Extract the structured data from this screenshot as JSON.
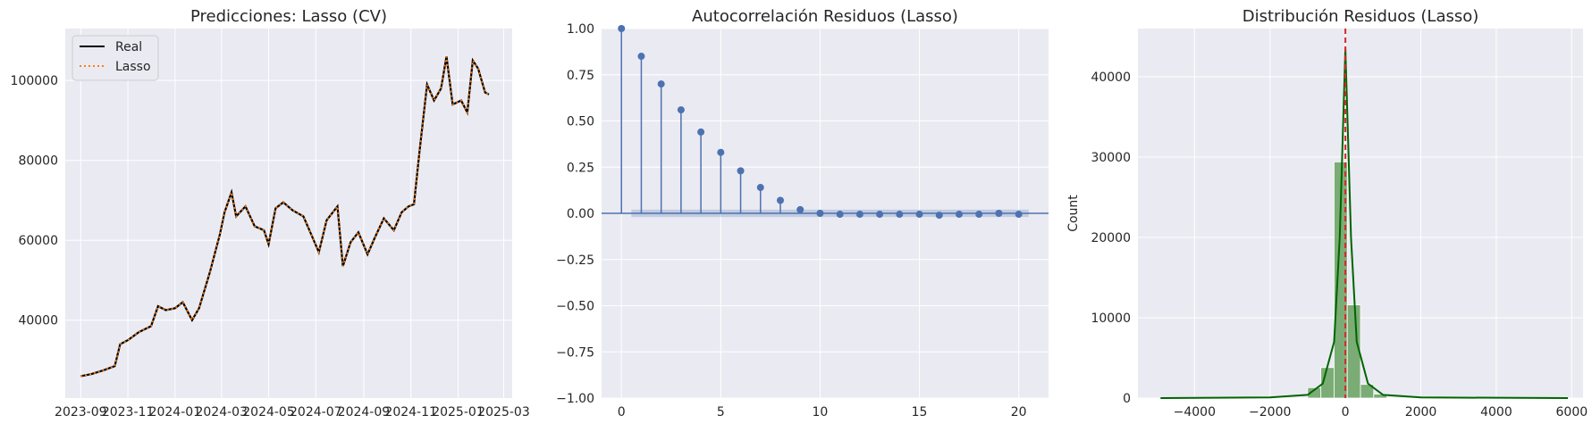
{
  "chart_data": [
    {
      "type": "line",
      "title": "Predicciones: Lasso (CV)",
      "xlabel": "",
      "ylabel": "",
      "x_ticks": [
        "2023-09",
        "2023-11",
        "2024-01",
        "2024-03",
        "2024-05",
        "2024-07",
        "2024-09",
        "2024-11",
        "2025-01",
        "2025-03"
      ],
      "y_ticks": [
        40000,
        60000,
        80000,
        100000
      ],
      "ylim": [
        20500,
        113000
      ],
      "xlim": [
        "2023-08-12",
        "2025-03-12"
      ],
      "legend_position": "top-left",
      "grid": true,
      "colors": {
        "Real": "#000000",
        "Lasso": "#ff7f0e"
      },
      "series": [
        {
          "name": "Real",
          "x": [
            "2023-09-01",
            "2023-09-15",
            "2023-10-01",
            "2023-10-15",
            "2023-10-22",
            "2023-11-01",
            "2023-11-15",
            "2023-12-01",
            "2023-12-10",
            "2023-12-20",
            "2024-01-01",
            "2024-01-11",
            "2024-01-23",
            "2024-02-01",
            "2024-02-15",
            "2024-02-28",
            "2024-03-05",
            "2024-03-14",
            "2024-03-20",
            "2024-04-01",
            "2024-04-13",
            "2024-04-25",
            "2024-05-01",
            "2024-05-10",
            "2024-05-20",
            "2024-06-01",
            "2024-06-15",
            "2024-06-25",
            "2024-07-05",
            "2024-07-15",
            "2024-07-29",
            "2024-08-05",
            "2024-08-15",
            "2024-08-25",
            "2024-09-06",
            "2024-09-15",
            "2024-09-27",
            "2024-10-10",
            "2024-10-20",
            "2024-10-29",
            "2024-11-05",
            "2024-11-12",
            "2024-11-22",
            "2024-12-01",
            "2024-12-10",
            "2024-12-17",
            "2024-12-25",
            "2025-01-05",
            "2025-01-13",
            "2025-01-20",
            "2025-01-27",
            "2025-02-05",
            "2025-02-10"
          ],
          "y": [
            26000,
            26500,
            27500,
            28500,
            34000,
            35000,
            37000,
            38500,
            43500,
            42500,
            43000,
            44500,
            40000,
            43000,
            52000,
            61500,
            67000,
            72000,
            66000,
            68500,
            63500,
            62500,
            59000,
            68000,
            69500,
            67500,
            66000,
            61500,
            57000,
            65000,
            68500,
            53500,
            59500,
            62000,
            56500,
            60500,
            65500,
            62500,
            67000,
            68500,
            69000,
            82000,
            99000,
            95000,
            98000,
            106000,
            94000,
            95000,
            92000,
            105000,
            103000,
            97000,
            96500
          ]
        },
        {
          "name": "Lasso",
          "x": [
            "2023-09-01",
            "2023-09-15",
            "2023-10-01",
            "2023-10-15",
            "2023-10-22",
            "2023-11-01",
            "2023-11-15",
            "2023-12-01",
            "2023-12-10",
            "2023-12-20",
            "2024-01-01",
            "2024-01-11",
            "2024-01-23",
            "2024-02-01",
            "2024-02-15",
            "2024-02-28",
            "2024-03-05",
            "2024-03-14",
            "2024-03-20",
            "2024-04-01",
            "2024-04-13",
            "2024-04-25",
            "2024-05-01",
            "2024-05-10",
            "2024-05-20",
            "2024-06-01",
            "2024-06-15",
            "2024-06-25",
            "2024-07-05",
            "2024-07-15",
            "2024-07-29",
            "2024-08-05",
            "2024-08-15",
            "2024-08-25",
            "2024-09-06",
            "2024-09-15",
            "2024-09-27",
            "2024-10-10",
            "2024-10-20",
            "2024-10-29",
            "2024-11-05",
            "2024-11-12",
            "2024-11-22",
            "2024-12-01",
            "2024-12-10",
            "2024-12-17",
            "2024-12-25",
            "2025-01-05",
            "2025-01-13",
            "2025-01-20",
            "2025-01-27",
            "2025-02-05",
            "2025-02-10"
          ],
          "y": [
            26000,
            26500,
            27500,
            28500,
            34000,
            35000,
            37000,
            38500,
            43500,
            42500,
            43000,
            44500,
            40000,
            43000,
            52000,
            61500,
            67000,
            72000,
            66000,
            68500,
            63500,
            62500,
            59000,
            68000,
            69500,
            67500,
            66000,
            61500,
            57000,
            65000,
            68500,
            53500,
            59500,
            62000,
            56500,
            60500,
            65500,
            62500,
            67000,
            68500,
            69000,
            82000,
            99000,
            95000,
            98000,
            106000,
            94000,
            95000,
            92000,
            105000,
            103000,
            97000,
            96500
          ]
        }
      ]
    },
    {
      "type": "stem",
      "title": "Autocorrelación Residuos (Lasso)",
      "xlabel": "",
      "ylabel": "",
      "x": [
        0,
        1,
        2,
        3,
        4,
        5,
        6,
        7,
        8,
        9,
        10,
        11,
        12,
        13,
        14,
        15,
        16,
        17,
        18,
        19,
        20
      ],
      "values": [
        1.0,
        0.85,
        0.7,
        0.56,
        0.44,
        0.33,
        0.23,
        0.14,
        0.07,
        0.02,
        0.0,
        -0.005,
        -0.005,
        -0.005,
        -0.005,
        -0.005,
        -0.01,
        -0.005,
        -0.005,
        0.0,
        -0.005
      ],
      "conf_band": 0.02,
      "x_ticks": [
        0,
        5,
        10,
        15,
        20
      ],
      "y_ticks": [
        "−1.00",
        "−0.75",
        "−0.50",
        "−0.25",
        "0.00",
        "0.25",
        "0.50",
        "0.75",
        "1.00"
      ],
      "xlim": [
        -1,
        21.5
      ],
      "ylim": [
        -1.0,
        1.0
      ],
      "color": "#4c72b0",
      "grid": true
    },
    {
      "type": "histogram",
      "title": "Distribución Residuos (Lasso)",
      "xlabel": "",
      "ylabel": "Count",
      "bins": [
        {
          "x0": -1000,
          "x1": -650,
          "count": 1300
        },
        {
          "x0": -650,
          "x1": -300,
          "count": 3800
        },
        {
          "x0": -300,
          "x1": 50,
          "count": 29400
        },
        {
          "x0": 50,
          "x1": 400,
          "count": 11600
        },
        {
          "x0": 400,
          "x1": 750,
          "count": 1700
        },
        {
          "x0": 750,
          "x1": 1100,
          "count": 500
        }
      ],
      "kde": {
        "x": [
          -4900,
          -2000,
          -1000,
          -600,
          -300,
          -150,
          0,
          150,
          300,
          600,
          1000,
          2000,
          5900
        ],
        "y": [
          0,
          80,
          400,
          1800,
          7000,
          20000,
          43500,
          20000,
          7000,
          1800,
          400,
          80,
          0
        ]
      },
      "vline": 0,
      "x_ticks": [
        "−4000",
        "−2000",
        "0",
        "2000",
        "4000",
        "6000"
      ],
      "y_ticks": [
        0,
        10000,
        20000,
        30000,
        40000
      ],
      "xlim": [
        -5500,
        6300
      ],
      "ylim": [
        0,
        46000
      ],
      "colors": {
        "bars": "#67a15f",
        "kde": "#006400",
        "vline": "#d62728"
      },
      "grid": true
    }
  ]
}
